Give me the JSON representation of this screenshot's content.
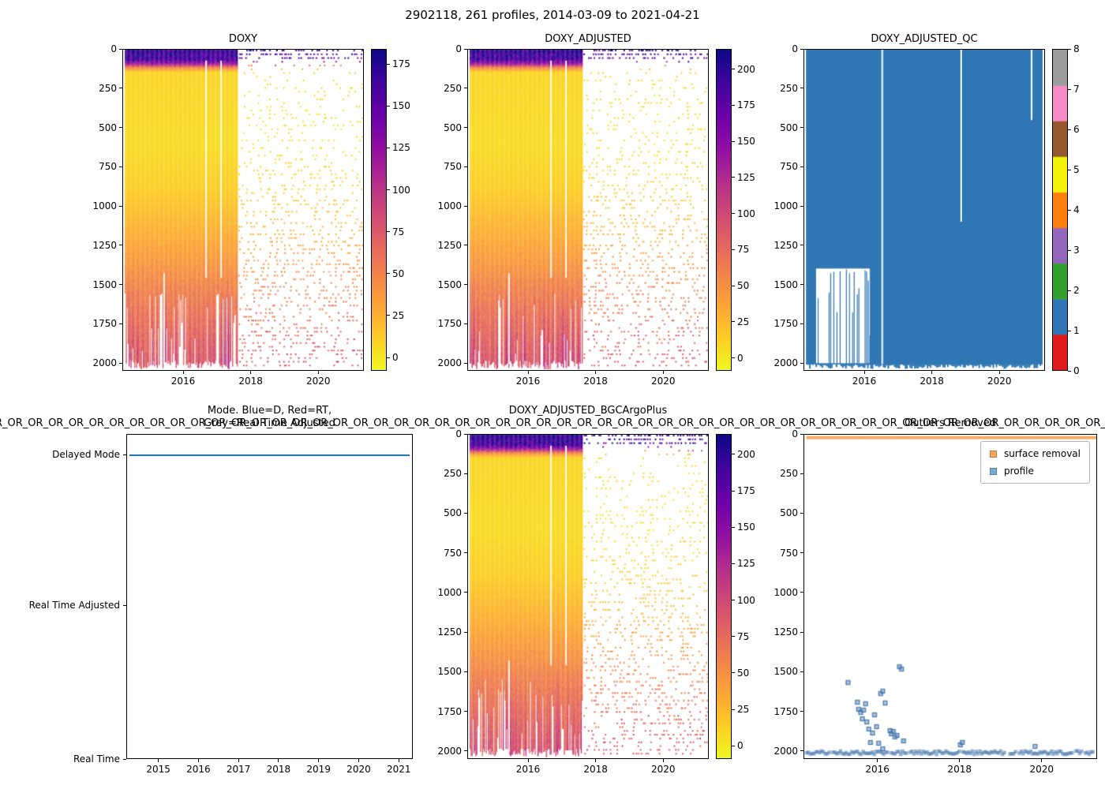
{
  "figure": {
    "title": "2902118, 261 profiles, 2014-03-09 to 2021-04-21",
    "overlap_text": "R_OR_OR_OR_OR_OR_OR_OR_OR_OR_OR_OR_OR_OR_OR_OR_OR_OR_OR_OR_OR_OR_OR_OR_OR_OR_OR_OR_OR_OR_OR_OR_OR_OR_OR_OR_OR_OR_OR_OR_OR_OR_OR_OR_OR_OR_OR_OR_OR_OR_OR_OR_OR_OR_OR_OR_OR_OR_OR_OR_OR_OR_OR_OR_OR_OR_OR_OR_OR_OR_OR_"
  },
  "colors": {
    "plasma_stops": [
      "#0d0887",
      "#41049d",
      "#6a00a8",
      "#8f0da4",
      "#b12a90",
      "#cc4778",
      "#e16462",
      "#f2844b",
      "#fca636",
      "#fcce25",
      "#f0f921"
    ],
    "qc_colors": [
      "#e31a1c",
      "#2f77b4",
      "#33a02c",
      "#9467bd",
      "#ff7f0e",
      "#f2f20a",
      "#96592f",
      "#f78bc5",
      "#9c9c9c"
    ],
    "mode_line": "#1f77b4",
    "scatter_profile": "#7aa9d2",
    "scatter_surface": "#f9a65a"
  },
  "chart_data": [
    {
      "id": "doxy",
      "type": "heatmap",
      "title": "DOXY",
      "el": {
        "ax": "ax-doxy",
        "cb": "cb-doxy"
      },
      "x_range": [
        2014.2,
        2021.35
      ],
      "y_range": [
        0,
        2050
      ],
      "data_x": [
        2014.25,
        2021.3
      ],
      "dense_until": 2017.6,
      "x_ticks": [
        2016,
        2018,
        2020
      ],
      "y_ticks": [
        0,
        250,
        500,
        750,
        1000,
        1250,
        1500,
        1750,
        2000
      ],
      "colorbar": {
        "vmin": -8,
        "vmax": 184,
        "ticks": [
          0,
          25,
          50,
          75,
          100,
          125,
          150,
          175
        ]
      },
      "profile": [
        [
          0,
          168
        ],
        [
          60,
          160
        ],
        [
          85,
          122
        ],
        [
          110,
          48
        ],
        [
          140,
          8
        ],
        [
          600,
          5
        ],
        [
          900,
          12
        ],
        [
          1200,
          28
        ],
        [
          1500,
          48
        ],
        [
          2000,
          72
        ]
      ],
      "gaps": [
        {
          "x": 2016.65,
          "d0": 70,
          "d1": 1460
        },
        {
          "x": 2017.1,
          "d0": 70,
          "d1": 1460
        },
        {
          "x": 2015.4,
          "d0": 1430,
          "d1": 2010
        }
      ],
      "seed": 11
    },
    {
      "id": "doxy_adjusted",
      "type": "heatmap",
      "title": "DOXY_ADJUSTED",
      "el": {
        "ax": "ax-doxyadj",
        "cb": "cb-doxyadj"
      },
      "x_range": [
        2014.2,
        2021.35
      ],
      "y_range": [
        0,
        2050
      ],
      "data_x": [
        2014.25,
        2021.3
      ],
      "dense_until": 2017.6,
      "x_ticks": [
        2016,
        2018,
        2020
      ],
      "y_ticks": [
        0,
        250,
        500,
        750,
        1000,
        1250,
        1500,
        1750,
        2000
      ],
      "colorbar": {
        "vmin": -9,
        "vmax": 214,
        "ticks": [
          0,
          25,
          50,
          75,
          100,
          125,
          150,
          175,
          200
        ]
      },
      "profile": [
        [
          0,
          197
        ],
        [
          60,
          188
        ],
        [
          85,
          143
        ],
        [
          110,
          56
        ],
        [
          140,
          9
        ],
        [
          600,
          6
        ],
        [
          900,
          14
        ],
        [
          1200,
          33
        ],
        [
          1500,
          56
        ],
        [
          2000,
          84
        ]
      ],
      "gaps": [
        {
          "x": 2016.65,
          "d0": 70,
          "d1": 1460
        },
        {
          "x": 2017.1,
          "d0": 70,
          "d1": 1460
        },
        {
          "x": 2015.4,
          "d0": 1430,
          "d1": 2010
        }
      ],
      "seed": 22
    },
    {
      "id": "doxy_adjusted_qc",
      "type": "qc_heatmap",
      "title": "DOXY_ADJUSTED_QC",
      "el": {
        "ax": "ax-qc",
        "cb": "cb-qc"
      },
      "x_range": [
        2014.2,
        2021.35
      ],
      "y_range": [
        0,
        2050
      ],
      "data_x": [
        2014.25,
        2021.3
      ],
      "x_ticks": [
        2016,
        2018,
        2020
      ],
      "y_ticks": [
        0,
        250,
        500,
        750,
        1000,
        1250,
        1500,
        1750,
        2000
      ],
      "cb_ticks": [
        0,
        1,
        2,
        3,
        4,
        5,
        6,
        7,
        8
      ],
      "fill_qc_value": 1,
      "gaps": [
        {
          "x": 2016.5,
          "d0": 0,
          "d1": 2012
        },
        {
          "x": 2018.85,
          "d0": 0,
          "d1": 1100
        },
        {
          "x": 2020.95,
          "d0": 0,
          "d1": 450
        }
      ],
      "spike_region": {
        "x0": 2014.55,
        "x1": 2016.15,
        "d_top": 1400
      },
      "seed": 33
    },
    {
      "id": "mode",
      "type": "line",
      "el": {
        "ax": "ax-mode"
      },
      "title_line1": "Mode. Blue=D, Red=RT,",
      "title_line2": "Grey=Real Time Adjusted",
      "x_range": [
        2014.2,
        2021.35
      ],
      "x_ticks": [
        2015,
        2016,
        2017,
        2018,
        2019,
        2020,
        2021
      ],
      "categories": [
        "Real Time",
        "Real Time Adjusted",
        "Delayed Mode"
      ],
      "cat_pos": [
        412,
        217,
        26
      ],
      "line": {
        "category": "Delayed Mode",
        "span": [
          2014.25,
          2021.3
        ]
      }
    },
    {
      "id": "doxy_adjusted_bgcargoplus",
      "type": "heatmap",
      "title": "DOXY_ADJUSTED_BGCArgoPlus",
      "el": {
        "ax": "ax-bgc",
        "cb": "cb-bgc"
      },
      "x_range": [
        2014.2,
        2021.35
      ],
      "y_range": [
        0,
        2050
      ],
      "data_x": [
        2014.25,
        2021.3
      ],
      "dense_until": 2017.6,
      "x_ticks": [
        2016,
        2018,
        2020
      ],
      "y_ticks": [
        0,
        250,
        500,
        750,
        1000,
        1250,
        1500,
        1750,
        2000
      ],
      "colorbar": {
        "vmin": -9,
        "vmax": 214,
        "ticks": [
          0,
          25,
          50,
          75,
          100,
          125,
          150,
          175,
          200
        ]
      },
      "profile": [
        [
          0,
          197
        ],
        [
          60,
          188
        ],
        [
          85,
          143
        ],
        [
          110,
          56
        ],
        [
          140,
          9
        ],
        [
          600,
          6
        ],
        [
          900,
          14
        ],
        [
          1200,
          33
        ],
        [
          1500,
          56
        ],
        [
          2000,
          84
        ]
      ],
      "gaps": [
        {
          "x": 2016.65,
          "d0": 70,
          "d1": 1460
        },
        {
          "x": 2017.1,
          "d0": 70,
          "d1": 1460
        },
        {
          "x": 2015.4,
          "d0": 1430,
          "d1": 2010
        }
      ],
      "seed": 44
    },
    {
      "id": "outliers_removed",
      "type": "scatter",
      "title": "Outliers Removed",
      "el": {
        "ax": "ax-outliers"
      },
      "x_range": [
        2014.2,
        2021.35
      ],
      "y_range": [
        0,
        2050
      ],
      "x_ticks": [
        2016,
        2018,
        2020
      ],
      "y_ticks": [
        0,
        250,
        500,
        750,
        1000,
        1250,
        1500,
        1750,
        2000
      ],
      "legend": [
        {
          "label": "surface removal",
          "color_key": "scatter_surface"
        },
        {
          "label": "profile",
          "color_key": "scatter_profile"
        }
      ],
      "surface_band": {
        "depth": 18,
        "x_from": 2014.25,
        "x_to": 2021.3
      },
      "bottom_band": {
        "depth": 2010,
        "jitter": 22,
        "x_from": 2014.25,
        "x_to": 2021.3
      },
      "points": [
        [
          2015.27,
          1570
        ],
        [
          2015.5,
          1695
        ],
        [
          2015.53,
          1740
        ],
        [
          2015.58,
          1760
        ],
        [
          2015.62,
          1800
        ],
        [
          2015.65,
          1745
        ],
        [
          2015.7,
          1705
        ],
        [
          2015.73,
          1820
        ],
        [
          2015.78,
          1865
        ],
        [
          2015.82,
          1950
        ],
        [
          2015.87,
          1890
        ],
        [
          2015.92,
          1775
        ],
        [
          2015.97,
          1850
        ],
        [
          2016.02,
          1955
        ],
        [
          2016.07,
          1640
        ],
        [
          2016.12,
          1625
        ],
        [
          2016.18,
          1700
        ],
        [
          2016.3,
          1875
        ],
        [
          2016.33,
          1895
        ],
        [
          2016.38,
          1880
        ],
        [
          2016.42,
          1915
        ],
        [
          2016.47,
          1905
        ],
        [
          2016.53,
          1470
        ],
        [
          2016.58,
          1485
        ],
        [
          2016.63,
          1940
        ],
        [
          2016.12,
          1990
        ],
        [
          2018.02,
          1965
        ],
        [
          2018.07,
          1950
        ],
        [
          2019.85,
          1975
        ]
      ],
      "seed": 55
    }
  ]
}
